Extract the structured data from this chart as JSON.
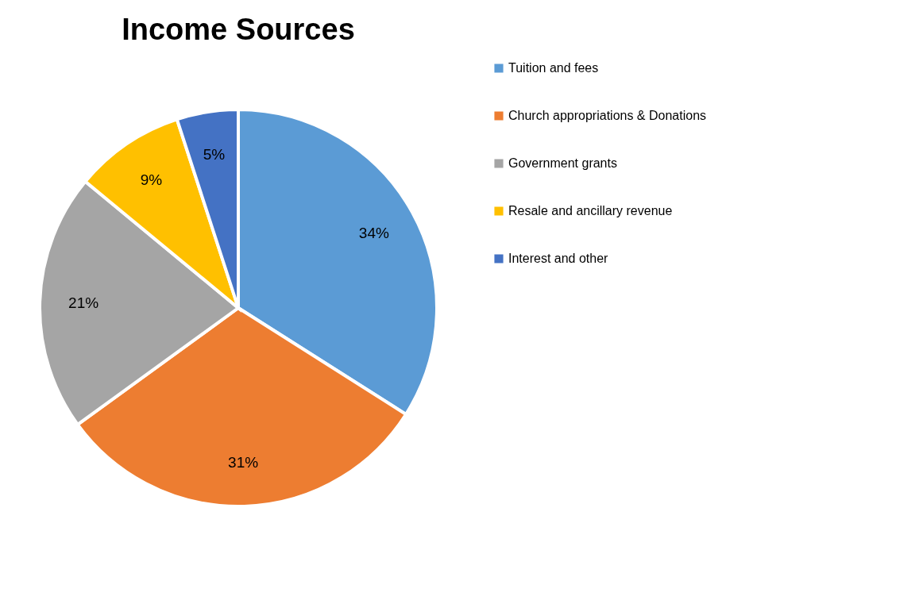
{
  "chart_data": {
    "type": "pie",
    "title": "Income Sources",
    "categories": [
      "Tuition and fees",
      "Church appropriations & Donations",
      "Government grants",
      "Resale and ancillary revenue",
      "Interest and other"
    ],
    "values": [
      34,
      31,
      21,
      9,
      5
    ],
    "colors": [
      "#5b9bd5",
      "#ed7d31",
      "#a5a5a5",
      "#ffc000",
      "#4472c4"
    ],
    "value_labels": [
      "34%",
      "31%",
      "21%",
      "9%",
      "5%"
    ],
    "legend": "right"
  }
}
